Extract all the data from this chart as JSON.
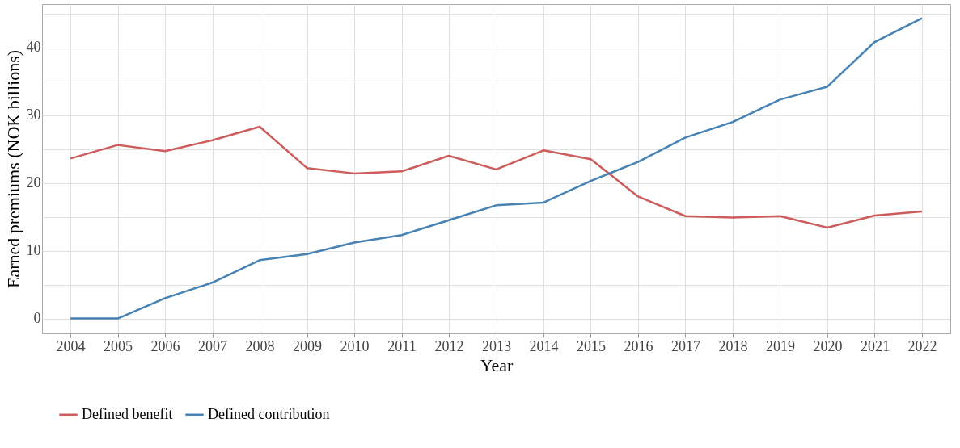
{
  "chart_data": {
    "type": "line",
    "xlabel": "Year",
    "ylabel": "Earned premiums (NOK billions)",
    "x": [
      2004,
      2005,
      2006,
      2007,
      2008,
      2009,
      2010,
      2011,
      2012,
      2013,
      2014,
      2015,
      2016,
      2017,
      2018,
      2019,
      2020,
      2021,
      2022
    ],
    "series": [
      {
        "name": "Defined benefit",
        "color": "#cd5c5c",
        "values": [
          23.6,
          25.6,
          24.7,
          26.3,
          28.3,
          22.2,
          21.4,
          21.7,
          24.0,
          22.0,
          24.8,
          23.5,
          18.0,
          15.1,
          14.9,
          15.1,
          13.4,
          15.2,
          15.8
        ]
      },
      {
        "name": "Defined contribution",
        "color": "#4682b4",
        "values": [
          0,
          0,
          3.0,
          5.3,
          8.6,
          9.5,
          11.2,
          12.3,
          14.5,
          16.7,
          17.1,
          20.3,
          23.1,
          26.7,
          29.0,
          32.3,
          34.2,
          40.8,
          44.3
        ]
      }
    ],
    "xlim": [
      2003.4,
      2022.6
    ],
    "ylim": [
      -2.2,
      46.4
    ],
    "xticks": [
      2004,
      2005,
      2006,
      2007,
      2008,
      2009,
      2010,
      2011,
      2012,
      2013,
      2014,
      2015,
      2016,
      2017,
      2018,
      2019,
      2020,
      2021,
      2022
    ],
    "yticks": [
      0,
      {
        "value": 5,
        "label": null
      },
      10,
      {
        "value": 15,
        "label": null
      },
      20,
      {
        "value": 25,
        "label": null
      },
      30,
      {
        "value": 35,
        "label": null
      },
      40,
      {
        "value": 45,
        "label": null
      }
    ],
    "grid": true,
    "legend": "bottom",
    "marker": "none",
    "line_style": "solid"
  }
}
